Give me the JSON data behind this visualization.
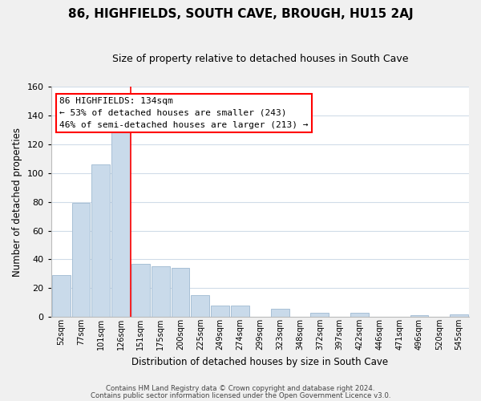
{
  "title": "86, HIGHFIELDS, SOUTH CAVE, BROUGH, HU15 2AJ",
  "subtitle": "Size of property relative to detached houses in South Cave",
  "xlabel": "Distribution of detached houses by size in South Cave",
  "ylabel": "Number of detached properties",
  "bar_color": "#c9daea",
  "bar_edge_color": "#a8c0d6",
  "annotation_text": "86 HIGHFIELDS: 134sqm\n← 53% of detached houses are smaller (243)\n46% of semi-detached houses are larger (213) →",
  "categories": [
    "52sqm",
    "77sqm",
    "101sqm",
    "126sqm",
    "151sqm",
    "175sqm",
    "200sqm",
    "225sqm",
    "249sqm",
    "274sqm",
    "299sqm",
    "323sqm",
    "348sqm",
    "372sqm",
    "397sqm",
    "422sqm",
    "446sqm",
    "471sqm",
    "496sqm",
    "520sqm",
    "545sqm"
  ],
  "values": [
    29,
    79,
    106,
    130,
    37,
    35,
    34,
    15,
    8,
    8,
    0,
    6,
    0,
    3,
    0,
    3,
    0,
    0,
    1,
    0,
    2
  ],
  "ylim": [
    0,
    160
  ],
  "yticks": [
    0,
    20,
    40,
    60,
    80,
    100,
    120,
    140,
    160
  ],
  "redline_x": 3.5,
  "footer1": "Contains HM Land Registry data © Crown copyright and database right 2024.",
  "footer2": "Contains public sector information licensed under the Open Government Licence v3.0.",
  "background_color": "#f0f0f0",
  "plot_background": "#ffffff",
  "grid_color": "#d0dce8"
}
